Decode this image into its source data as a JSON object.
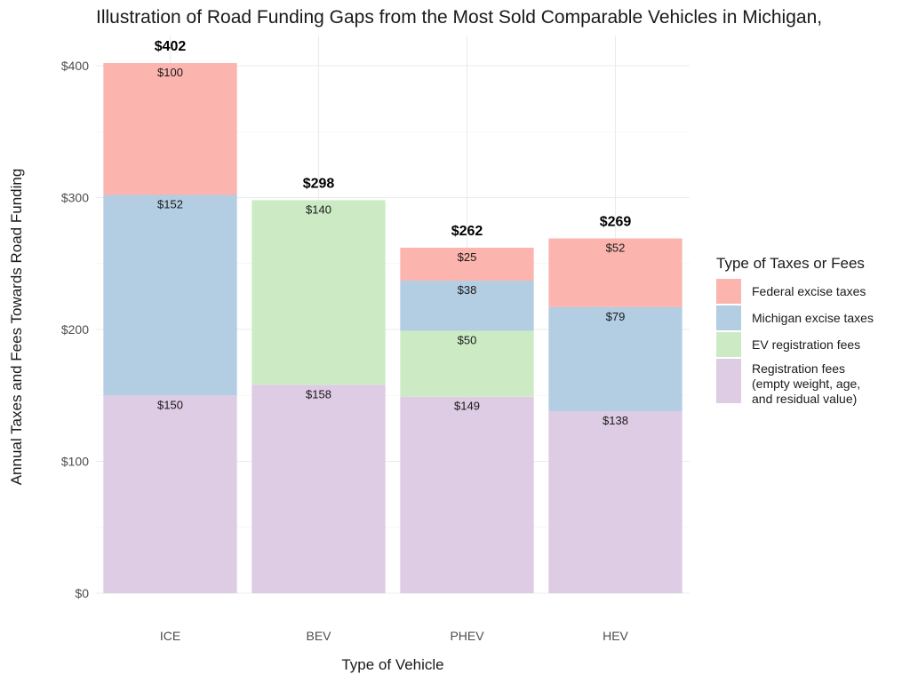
{
  "chart_data": {
    "type": "bar",
    "stacked": true,
    "title": "Illustration of Road Funding Gaps from the Most Sold Comparable Vehicles in Michigan,",
    "xlabel": "Type of Vehicle",
    "ylabel": "Annual Taxes and Fees Towards Road Funding",
    "ylim": [
      0,
      420
    ],
    "yticks": [
      0,
      100,
      200,
      300,
      400
    ],
    "ytick_labels": [
      "$0",
      "$100",
      "$200",
      "$300",
      "$400"
    ],
    "grid": true,
    "categories": [
      "ICE",
      "BEV",
      "PHEV",
      "HEV"
    ],
    "series": [
      {
        "name": "Registration fees\n(empty weight, age,\nand residual value)",
        "color": "#decbe4",
        "values": [
          150,
          158,
          149,
          138
        ],
        "labels": [
          "$150",
          "$158",
          "$149",
          "$138"
        ]
      },
      {
        "name": "EV registration fees",
        "color": "#ccebc5",
        "values": [
          0,
          140,
          50,
          0
        ],
        "labels": [
          "",
          "$140",
          "$50",
          ""
        ]
      },
      {
        "name": "Michigan excise taxes",
        "color": "#b3cde3",
        "values": [
          152,
          0,
          38,
          79
        ],
        "labels": [
          "$152",
          "",
          "$38",
          "$79"
        ]
      },
      {
        "name": "Federal excise taxes",
        "color": "#fbb4ae",
        "values": [
          100,
          0,
          25,
          52
        ],
        "labels": [
          "$100",
          "",
          "$25",
          "$52"
        ]
      }
    ],
    "totals": [
      402,
      298,
      262,
      269
    ],
    "total_labels": [
      "$402",
      "$298",
      "$262",
      "$269"
    ],
    "legend": {
      "title": "Type of Taxes or Fees",
      "position": "right",
      "order": [
        "Federal excise taxes",
        "Michigan excise taxes",
        "EV registration fees",
        "Registration fees\n(empty weight, age,\nand residual value)"
      ]
    }
  }
}
